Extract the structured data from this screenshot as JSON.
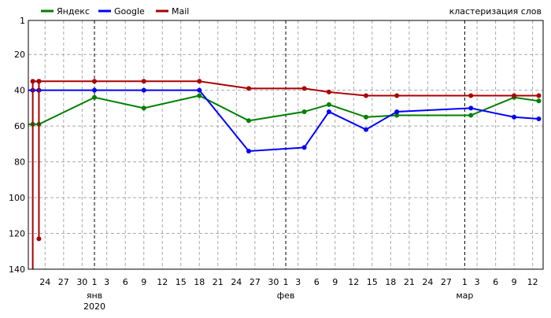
{
  "chart_data": {
    "type": "line",
    "title": "кластеризация слов",
    "xlabel": "",
    "ylabel": "",
    "y_reversed": true,
    "ylim": [
      1,
      140
    ],
    "yticks": [
      1,
      20,
      40,
      60,
      80,
      100,
      120,
      140
    ],
    "xlim": [
      "2019-12-21",
      "2020-03-13"
    ],
    "x_tick_labels": [
      "24",
      "27",
      "30",
      "1",
      "3",
      "6",
      "9",
      "12",
      "15",
      "18",
      "21",
      "24",
      "27",
      "30",
      "1",
      "3",
      "6",
      "9",
      "12",
      "15",
      "18",
      "21",
      "24",
      "27",
      "1",
      "3",
      "6",
      "9",
      "12"
    ],
    "x_tick_dates": [
      "2019-12-24",
      "2019-12-27",
      "2019-12-30",
      "2020-01-01",
      "2020-01-03",
      "2020-01-06",
      "2020-01-09",
      "2020-01-12",
      "2020-01-15",
      "2020-01-18",
      "2020-01-21",
      "2020-01-24",
      "2020-01-27",
      "2020-01-30",
      "2020-02-01",
      "2020-02-03",
      "2020-02-06",
      "2020-02-09",
      "2020-02-12",
      "2020-02-15",
      "2020-02-18",
      "2020-02-21",
      "2020-02-24",
      "2020-02-27",
      "2020-03-01",
      "2020-03-03",
      "2020-03-06",
      "2020-03-09",
      "2020-03-12"
    ],
    "months": [
      {
        "label": "янв",
        "date": "2020-01-01"
      },
      {
        "label": "фев",
        "date": "2020-02-01"
      },
      {
        "label": "мар",
        "date": "2020-03-01"
      }
    ],
    "year_label": "2020",
    "grid": true,
    "legend": "top-left",
    "series": [
      {
        "name": "Яндекс",
        "color": "#008000",
        "points": [
          [
            "2019-12-21",
            59
          ],
          [
            "2019-12-22",
            59
          ],
          [
            "2019-12-23",
            59
          ],
          [
            "2020-01-01",
            44
          ],
          [
            "2020-01-09",
            50
          ],
          [
            "2020-01-18",
            43
          ],
          [
            "2020-01-26",
            57
          ],
          [
            "2020-02-04",
            52
          ],
          [
            "2020-02-08",
            48
          ],
          [
            "2020-02-14",
            55
          ],
          [
            "2020-02-19",
            54
          ],
          [
            "2020-03-02",
            54
          ],
          [
            "2020-03-09",
            44
          ],
          [
            "2020-03-13",
            46
          ]
        ]
      },
      {
        "name": "Google",
        "color": "#0000ff",
        "points": [
          [
            "2019-12-21",
            40
          ],
          [
            "2019-12-22",
            40
          ],
          [
            "2019-12-23",
            40
          ],
          [
            "2020-01-01",
            40
          ],
          [
            "2020-01-09",
            40
          ],
          [
            "2020-01-18",
            40
          ],
          [
            "2020-01-26",
            74
          ],
          [
            "2020-02-04",
            72
          ],
          [
            "2020-02-08",
            52
          ],
          [
            "2020-02-14",
            62
          ],
          [
            "2020-02-19",
            52
          ],
          [
            "2020-03-02",
            50
          ],
          [
            "2020-03-09",
            55
          ],
          [
            "2020-03-13",
            56
          ]
        ]
      },
      {
        "name": "Mail",
        "color": "#aa0000",
        "points": [
          [
            "2019-12-22",
            140
          ],
          [
            "2019-12-22",
            35
          ],
          [
            "2019-12-23",
            35
          ],
          [
            "2019-12-23",
            123
          ],
          [
            "2019-12-23",
            35
          ],
          [
            "2020-01-01",
            35
          ],
          [
            "2020-01-09",
            35
          ],
          [
            "2020-01-18",
            35
          ],
          [
            "2020-01-26",
            39
          ],
          [
            "2020-02-04",
            39
          ],
          [
            "2020-02-08",
            41
          ],
          [
            "2020-02-14",
            43
          ],
          [
            "2020-02-19",
            43
          ],
          [
            "2020-03-02",
            43
          ],
          [
            "2020-03-09",
            43
          ],
          [
            "2020-03-13",
            43
          ]
        ]
      }
    ]
  }
}
